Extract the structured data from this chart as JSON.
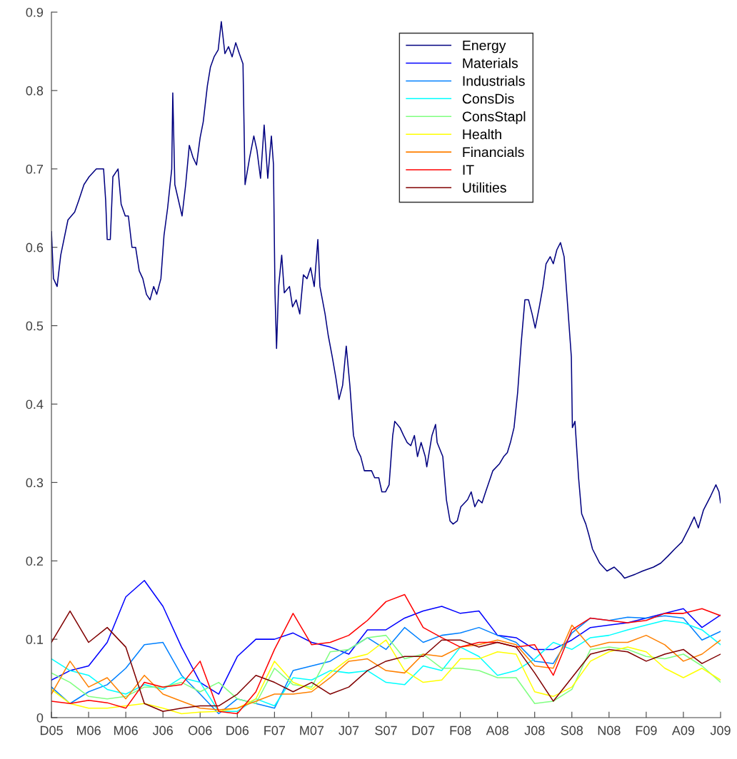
{
  "chart_data": {
    "type": "line",
    "xlim": [
      "2005-12-20",
      "2009-07-08"
    ],
    "ylim": [
      0,
      0.9
    ],
    "xticks": [
      {
        "value": "2005-12-20",
        "label": "D05"
      },
      {
        "value": "2006-03-02",
        "label": "M06"
      },
      {
        "value": "2006-05-13",
        "label": "M06"
      },
      {
        "value": "2006-07-24",
        "label": "J06"
      },
      {
        "value": "2006-10-04",
        "label": "O06"
      },
      {
        "value": "2006-12-15",
        "label": "D06"
      },
      {
        "value": "2007-02-25",
        "label": "F07"
      },
      {
        "value": "2007-05-08",
        "label": "M07"
      },
      {
        "value": "2007-07-19",
        "label": "J07"
      },
      {
        "value": "2007-09-29",
        "label": "S07"
      },
      {
        "value": "2007-12-10",
        "label": "D07"
      },
      {
        "value": "2008-02-20",
        "label": "F08"
      },
      {
        "value": "2008-05-02",
        "label": "A08"
      },
      {
        "value": "2008-07-13",
        "label": "J08"
      },
      {
        "value": "2008-09-23",
        "label": "S08"
      },
      {
        "value": "2008-12-04",
        "label": "N08"
      },
      {
        "value": "2009-02-14",
        "label": "F09"
      },
      {
        "value": "2009-04-27",
        "label": "A09"
      },
      {
        "value": "2009-07-08",
        "label": "J09"
      }
    ],
    "yticks": [
      0,
      0.1,
      0.2,
      0.3,
      0.4,
      0.5,
      0.6,
      0.7,
      0.8,
      0.9
    ],
    "grid": false,
    "legend": "top right",
    "line_style": "solid",
    "marker": "none",
    "x": [
      "2005-12-20",
      "2006-01-25",
      "2006-03-02",
      "2006-04-07",
      "2006-05-13",
      "2006-06-18",
      "2006-07-24",
      "2006-08-29",
      "2006-10-04",
      "2006-11-09",
      "2006-12-15",
      "2007-01-20",
      "2007-02-25",
      "2007-04-02",
      "2007-05-08",
      "2007-06-13",
      "2007-07-19",
      "2007-08-24",
      "2007-09-29",
      "2007-11-04",
      "2007-12-10",
      "2008-01-15",
      "2008-02-20",
      "2008-03-27",
      "2008-05-02",
      "2008-06-07",
      "2008-07-13",
      "2008-08-18",
      "2008-09-23",
      "2008-10-29",
      "2008-12-04",
      "2009-01-09",
      "2009-02-14",
      "2009-03-22",
      "2009-04-27",
      "2009-06-02",
      "2009-07-08"
    ],
    "series": [
      {
        "name": "Energy",
        "color": "#000080",
        "x": [
          "2005-12-20",
          "2005-12-24",
          "2005-12-31",
          "2006-01-07",
          "2006-01-21",
          "2006-02-03",
          "2006-02-11",
          "2006-02-21",
          "2006-03-03",
          "2006-03-17",
          "2006-03-31",
          "2006-04-04",
          "2006-04-07",
          "2006-04-13",
          "2006-04-18",
          "2006-04-28",
          "2006-05-04",
          "2006-05-12",
          "2006-05-18",
          "2006-05-25",
          "2006-06-01",
          "2006-06-08",
          "2006-06-15",
          "2006-06-22",
          "2006-06-29",
          "2006-07-06",
          "2006-07-12",
          "2006-07-20",
          "2006-07-26",
          "2006-08-02",
          "2006-08-10",
          "2006-08-12",
          "2006-08-16",
          "2006-08-30",
          "2006-09-06",
          "2006-09-13",
          "2006-09-20",
          "2006-09-27",
          "2006-10-04",
          "2006-10-10",
          "2006-10-18",
          "2006-10-24",
          "2006-10-31",
          "2006-11-08",
          "2006-11-14",
          "2006-11-21",
          "2006-11-28",
          "2006-12-05",
          "2006-12-12",
          "2006-12-19",
          "2006-12-26",
          "2006-12-30",
          "2007-01-08",
          "2007-01-16",
          "2007-01-22",
          "2007-01-29",
          "2007-02-05",
          "2007-02-12",
          "2007-02-19",
          "2007-02-23",
          "2007-02-26",
          "2007-03-01",
          "2007-03-05",
          "2007-03-11",
          "2007-03-16",
          "2007-03-26",
          "2007-04-01",
          "2007-04-08",
          "2007-04-15",
          "2007-04-22",
          "2007-04-29",
          "2007-05-06",
          "2007-05-13",
          "2007-05-20",
          "2007-05-24",
          "2007-06-03",
          "2007-06-09",
          "2007-06-17",
          "2007-06-24",
          "2007-06-30",
          "2007-07-07",
          "2007-07-14",
          "2007-07-21",
          "2007-07-28",
          "2007-08-04",
          "2007-08-11",
          "2007-08-18",
          "2007-09-01",
          "2007-09-07",
          "2007-09-15",
          "2007-09-21",
          "2007-09-28",
          "2007-10-05",
          "2007-10-12",
          "2007-10-16",
          "2007-10-26",
          "2007-11-02",
          "2007-11-09",
          "2007-11-16",
          "2007-11-23",
          "2007-11-29",
          "2007-12-06",
          "2007-12-14",
          "2007-12-17",
          "2007-12-27",
          "2008-01-03",
          "2008-01-06",
          "2008-01-17",
          "2008-01-24",
          "2008-01-31",
          "2008-02-06",
          "2008-02-14",
          "2008-02-21",
          "2008-03-05",
          "2008-03-12",
          "2008-03-19",
          "2008-03-26",
          "2008-04-02",
          "2008-04-09",
          "2008-04-23",
          "2008-05-06",
          "2008-05-14",
          "2008-05-21",
          "2008-05-27",
          "2008-06-03",
          "2008-06-10",
          "2008-06-17",
          "2008-06-24",
          "2008-07-01",
          "2008-07-08",
          "2008-07-14",
          "2008-07-22",
          "2008-07-29",
          "2008-08-04",
          "2008-08-12",
          "2008-08-18",
          "2008-08-25",
          "2008-09-01",
          "2008-09-08",
          "2008-09-15",
          "2008-09-22",
          "2008-09-24",
          "2008-09-29",
          "2008-10-06",
          "2008-10-12",
          "2008-10-20",
          "2008-10-26",
          "2008-11-02",
          "2008-11-16",
          "2008-11-30",
          "2008-12-14",
          "2008-12-28",
          "2009-01-03",
          "2009-01-24",
          "2009-02-07",
          "2009-02-28",
          "2009-03-14",
          "2009-03-28",
          "2009-04-10",
          "2009-04-24",
          "2009-05-08",
          "2009-05-18",
          "2009-05-26",
          "2009-06-05",
          "2009-06-19",
          "2009-06-29",
          "2009-07-05",
          "2009-07-08"
        ],
        "values": [
          0.62,
          0.56,
          0.55,
          0.59,
          0.635,
          0.645,
          0.66,
          0.68,
          0.69,
          0.7,
          0.7,
          0.66,
          0.61,
          0.61,
          0.69,
          0.7,
          0.655,
          0.64,
          0.64,
          0.6,
          0.6,
          0.57,
          0.56,
          0.54,
          0.533,
          0.55,
          0.54,
          0.56,
          0.615,
          0.65,
          0.7,
          0.797,
          0.68,
          0.64,
          0.68,
          0.73,
          0.715,
          0.705,
          0.74,
          0.76,
          0.806,
          0.83,
          0.843,
          0.852,
          0.888,
          0.847,
          0.856,
          0.843,
          0.861,
          0.847,
          0.834,
          0.68,
          0.715,
          0.742,
          0.724,
          0.688,
          0.756,
          0.688,
          0.742,
          0.706,
          0.542,
          0.471,
          0.55,
          0.59,
          0.542,
          0.55,
          0.524,
          0.533,
          0.515,
          0.565,
          0.56,
          0.574,
          0.55,
          0.61,
          0.55,
          0.515,
          0.488,
          0.46,
          0.433,
          0.406,
          0.424,
          0.474,
          0.424,
          0.36,
          0.342,
          0.333,
          0.315,
          0.315,
          0.306,
          0.306,
          0.288,
          0.288,
          0.297,
          0.36,
          0.378,
          0.37,
          0.36,
          0.351,
          0.347,
          0.36,
          0.333,
          0.351,
          0.333,
          0.32,
          0.36,
          0.374,
          0.351,
          0.333,
          0.278,
          0.251,
          0.247,
          0.251,
          0.269,
          0.278,
          0.288,
          0.269,
          0.278,
          0.274,
          0.288,
          0.315,
          0.324,
          0.333,
          0.338,
          0.351,
          0.37,
          0.415,
          0.479,
          0.533,
          0.533,
          0.515,
          0.497,
          0.524,
          0.55,
          0.579,
          0.588,
          0.579,
          0.597,
          0.606,
          0.588,
          0.524,
          0.46,
          0.37,
          0.378,
          0.306,
          0.26,
          0.247,
          0.233,
          0.215,
          0.197,
          0.187,
          0.192,
          0.183,
          0.178,
          0.183,
          0.187,
          0.192,
          0.197,
          0.206,
          0.215,
          0.224,
          0.242,
          0.256,
          0.242,
          0.265,
          0.283,
          0.297,
          0.288,
          0.274
        ]
      },
      {
        "name": "Materials",
        "color": "#0000ff",
        "values": [
          0.048,
          0.06,
          0.066,
          0.096,
          0.154,
          0.175,
          0.142,
          0.09,
          0.045,
          0.03,
          0.078,
          0.1,
          0.1,
          0.108,
          0.096,
          0.09,
          0.081,
          0.112,
          0.112,
          0.127,
          0.136,
          0.142,
          0.133,
          0.136,
          0.105,
          0.102,
          0.087,
          0.087,
          0.099,
          0.115,
          0.118,
          0.121,
          0.127,
          0.133,
          0.139,
          0.115,
          0.131
        ]
      },
      {
        "name": "Industrials",
        "color": "#0080ff",
        "values": [
          0.039,
          0.018,
          0.033,
          0.042,
          0.063,
          0.093,
          0.096,
          0.054,
          0.03,
          0.005,
          0.024,
          0.018,
          0.012,
          0.06,
          0.066,
          0.072,
          0.087,
          0.102,
          0.087,
          0.115,
          0.096,
          0.105,
          0.108,
          0.115,
          0.105,
          0.096,
          0.072,
          0.069,
          0.108,
          0.127,
          0.124,
          0.128,
          0.127,
          0.13,
          0.127,
          0.099,
          0.11
        ]
      },
      {
        "name": "ConsDis",
        "color": "#00ffff",
        "values": [
          0.075,
          0.06,
          0.054,
          0.036,
          0.03,
          0.042,
          0.036,
          0.051,
          0.045,
          0.008,
          0.008,
          0.024,
          0.015,
          0.051,
          0.048,
          0.06,
          0.057,
          0.06,
          0.045,
          0.042,
          0.066,
          0.06,
          0.09,
          0.078,
          0.054,
          0.06,
          0.075,
          0.096,
          0.087,
          0.102,
          0.105,
          0.112,
          0.118,
          0.124,
          0.121,
          0.112,
          0.093
        ]
      },
      {
        "name": "ConsStapl",
        "color": "#80ff80",
        "values": [
          0.057,
          0.045,
          0.027,
          0.024,
          0.027,
          0.039,
          0.039,
          0.045,
          0.033,
          0.045,
          0.024,
          0.018,
          0.063,
          0.042,
          0.039,
          0.084,
          0.087,
          0.102,
          0.105,
          0.075,
          0.081,
          0.063,
          0.063,
          0.06,
          0.051,
          0.051,
          0.018,
          0.021,
          0.036,
          0.087,
          0.09,
          0.087,
          0.078,
          0.075,
          0.081,
          0.066,
          0.045
        ]
      },
      {
        "name": "Health",
        "color": "#ffff00",
        "values": [
          0.036,
          0.018,
          0.012,
          0.012,
          0.015,
          0.018,
          0.012,
          0.005,
          0.007,
          0.008,
          0.012,
          0.024,
          0.072,
          0.045,
          0.036,
          0.057,
          0.075,
          0.081,
          0.099,
          0.06,
          0.045,
          0.048,
          0.075,
          0.075,
          0.084,
          0.081,
          0.033,
          0.027,
          0.039,
          0.072,
          0.084,
          0.09,
          0.084,
          0.063,
          0.051,
          0.063,
          0.048
        ]
      },
      {
        "name": "Financials",
        "color": "#ff8000",
        "values": [
          0.03,
          0.072,
          0.039,
          0.051,
          0.024,
          0.054,
          0.03,
          0.021,
          0.012,
          0.01,
          0.012,
          0.021,
          0.03,
          0.03,
          0.033,
          0.051,
          0.072,
          0.075,
          0.06,
          0.057,
          0.081,
          0.078,
          0.09,
          0.093,
          0.099,
          0.093,
          0.066,
          0.063,
          0.118,
          0.09,
          0.096,
          0.096,
          0.105,
          0.093,
          0.072,
          0.081,
          0.099
        ]
      },
      {
        "name": "IT",
        "color": "#ff0000",
        "values": [
          0.021,
          0.018,
          0.022,
          0.019,
          0.012,
          0.045,
          0.039,
          0.042,
          0.072,
          0.008,
          0.005,
          0.033,
          0.087,
          0.133,
          0.093,
          0.096,
          0.105,
          0.124,
          0.148,
          0.157,
          0.115,
          0.102,
          0.09,
          0.096,
          0.096,
          0.09,
          0.093,
          0.054,
          0.112,
          0.127,
          0.124,
          0.121,
          0.124,
          0.133,
          0.133,
          0.139,
          0.13
        ]
      },
      {
        "name": "Utilities",
        "color": "#800000",
        "values": [
          0.096,
          0.136,
          0.096,
          0.115,
          0.09,
          0.018,
          0.008,
          0.012,
          0.015,
          0.015,
          0.03,
          0.054,
          0.045,
          0.033,
          0.045,
          0.03,
          0.039,
          0.06,
          0.072,
          0.078,
          0.078,
          0.099,
          0.099,
          0.09,
          0.096,
          0.09,
          0.057,
          0.021,
          0.051,
          0.081,
          0.087,
          0.084,
          0.072,
          0.081,
          0.087,
          0.069,
          0.081
        ]
      }
    ]
  }
}
